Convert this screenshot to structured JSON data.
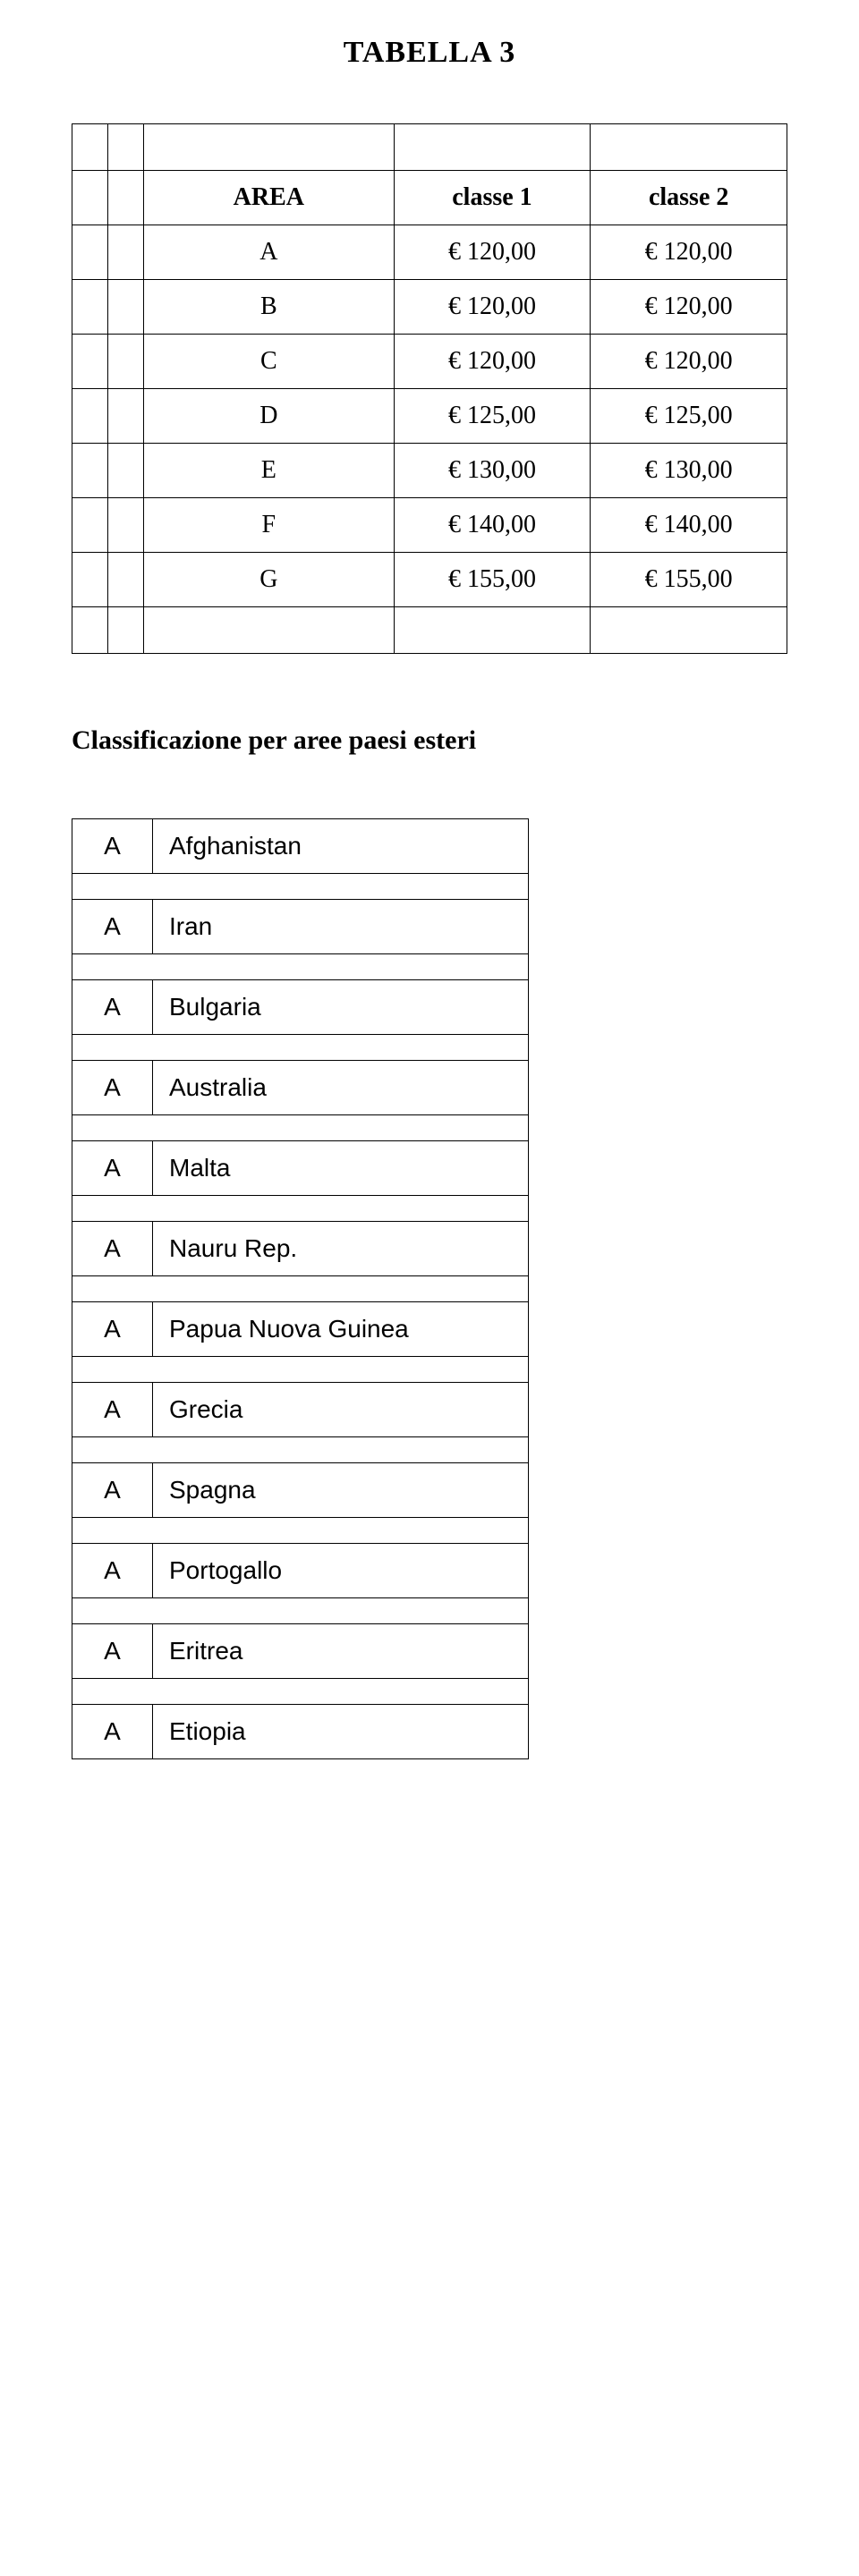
{
  "title": "TABELLA 3",
  "table1": {
    "headers": {
      "area": "AREA",
      "c1": "classe 1",
      "c2": "classe 2"
    },
    "rows": [
      {
        "area": "A",
        "c1": "€ 120,00",
        "c2": "€ 120,00"
      },
      {
        "area": "B",
        "c1": "€ 120,00",
        "c2": "€ 120,00"
      },
      {
        "area": "C",
        "c1": "€ 120,00",
        "c2": "€ 120,00"
      },
      {
        "area": "D",
        "c1": "€ 125,00",
        "c2": "€ 125,00"
      },
      {
        "area": "E",
        "c1": "€ 130,00",
        "c2": "€ 130,00"
      },
      {
        "area": "F",
        "c1": "€ 140,00",
        "c2": "€ 140,00"
      },
      {
        "area": "G",
        "c1": "€ 155,00",
        "c2": "€ 155,00"
      }
    ]
  },
  "section_title": "Classificazione per aree paesi esteri",
  "countries": [
    {
      "code": "A",
      "name": "Afghanistan",
      "extended": false
    },
    {
      "code": "A",
      "name": "Iran",
      "extended": false
    },
    {
      "code": "A",
      "name": "Bulgaria",
      "extended": false
    },
    {
      "code": "A",
      "name": "Australia",
      "extended": false
    },
    {
      "code": "A",
      "name": "Malta",
      "extended": false
    },
    {
      "code": "A",
      "name": "Nauru Rep.",
      "extended": false
    },
    {
      "code": "A",
      "name": "Papua Nuova Guinea",
      "extended": true
    },
    {
      "code": "A",
      "name": "Grecia",
      "extended": true
    },
    {
      "code": "A",
      "name": "Spagna",
      "extended": false
    },
    {
      "code": "A",
      "name": "Portogallo",
      "extended": false
    },
    {
      "code": "A",
      "name": "Eritrea",
      "extended": false
    },
    {
      "code": "A",
      "name": "Etiopia",
      "extended": false
    }
  ]
}
